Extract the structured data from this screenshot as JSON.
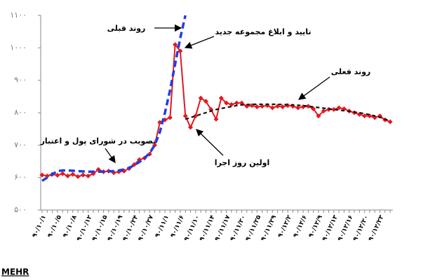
{
  "chart_data": {
    "type": "line",
    "ylim": [
      500,
      1100
    ],
    "yticks": [
      {
        "value": 500,
        "label": "۵۰۰"
      },
      {
        "value": 600,
        "label": "۶۰۰"
      },
      {
        "value": 700,
        "label": "۷۰۰"
      },
      {
        "value": 800,
        "label": "۸۰۰"
      },
      {
        "value": 900,
        "label": "۹۰۰"
      },
      {
        "value": 1000,
        "label": "۱۰۰۰"
      },
      {
        "value": 1100,
        "label": "۱۱۰۰"
      }
    ],
    "categories": [
      "۹۰/۱۰/۱",
      null,
      null,
      "۹۰/۱۰/۵",
      null,
      null,
      "۹۰/۱۰/۸",
      null,
      null,
      "۹۰/۱۰/۱۲",
      null,
      null,
      "۹۰/۱۰/۱۵",
      null,
      null,
      "۹۰/۱۰/۱۹",
      null,
      null,
      "۹۰/۱۰/۲۴",
      null,
      null,
      "۹۰/۱۰/۲۷",
      null,
      null,
      "۹۰/۱۱/۱",
      null,
      null,
      "۹۰/۱۱/۶",
      null,
      null,
      "۹۰/۱۱/۱۰",
      null,
      null,
      "۹۰/۱۱/۱۴",
      null,
      null,
      "۹۰/۱۱/۱۷",
      null,
      null,
      "۹۰/۱۱/۲۰",
      null,
      null,
      "۹۰/۱۱/۲۵",
      null,
      null,
      "۹۰/۱۱/۲۹",
      null,
      null,
      "۹۰/۱۲/۲",
      null,
      null,
      "۹۰/۱۲/۶",
      null,
      null,
      "۹۰/۱۲/۹",
      null,
      null,
      "۹۰/۱۲/۱۳",
      null,
      null,
      "۹۰/۱۲/۱۶",
      null,
      null,
      "۹۰/۱۲/۲۰",
      null,
      null,
      "۹۰/۱۲/۲۳",
      null,
      null
    ],
    "series": [
      {
        "color": "#e3191f",
        "style": "markers",
        "values": [
          608,
          605,
          610,
          607,
          612,
          605,
          610,
          603,
          608,
          605,
          612,
          625,
          618,
          620,
          615,
          618,
          620,
          628,
          640,
          655,
          660,
          672,
          700,
          770,
          778,
          785,
          1010,
          990,
          790,
          755,
          790,
          845,
          835,
          810,
          780,
          845,
          830,
          825,
          830,
          830,
          820,
          822,
          818,
          820,
          822,
          815,
          820,
          818,
          822,
          820,
          815,
          818,
          820,
          812,
          790,
          805,
          810,
          810,
          815,
          812,
          805,
          800,
          795,
          790,
          790,
          785,
          790,
          778,
          772
        ]
      },
      {
        "color": "#1f3fe0",
        "style": "dashed-thick",
        "values": [
          590,
          600,
          610,
          620,
          622,
          622,
          621,
          620,
          619,
          618,
          618,
          618,
          618,
          619,
          620,
          622,
          625,
          630,
          638,
          648,
          660,
          675,
          700,
          740,
          800,
          870,
          950,
          1030,
          1100,
          null,
          null,
          null,
          null,
          null,
          null,
          null,
          null,
          null,
          null,
          null,
          null,
          null,
          null,
          null,
          null,
          null,
          null,
          null,
          null,
          null,
          null,
          null,
          null,
          null,
          null,
          null,
          null,
          null,
          null,
          null,
          null,
          null,
          null,
          null,
          null,
          null,
          null,
          null,
          null
        ]
      },
      {
        "color": "#111111",
        "style": "dashed",
        "values": [
          null,
          null,
          null,
          null,
          null,
          null,
          null,
          null,
          null,
          null,
          null,
          null,
          null,
          null,
          null,
          null,
          null,
          null,
          null,
          null,
          null,
          null,
          null,
          null,
          null,
          null,
          null,
          null,
          780,
          785,
          790,
          795,
          800,
          805,
          810,
          813,
          816,
          819,
          822,
          824,
          825,
          826,
          826,
          826,
          826,
          826,
          826,
          825,
          825,
          824,
          823,
          822,
          820,
          818,
          816,
          814,
          812,
          810,
          808,
          806,
          804,
          802,
          800,
          797,
          794,
          790,
          786,
          780,
          775
        ]
      }
    ],
    "annotations": [
      "روند قبلی",
      "تایید و ابلاغ مجموعه جدید",
      "روند فعلی",
      "تصویب در شورای پول و اعتبار",
      "اولین روز اجرا"
    ],
    "watermark": "MEHR"
  }
}
